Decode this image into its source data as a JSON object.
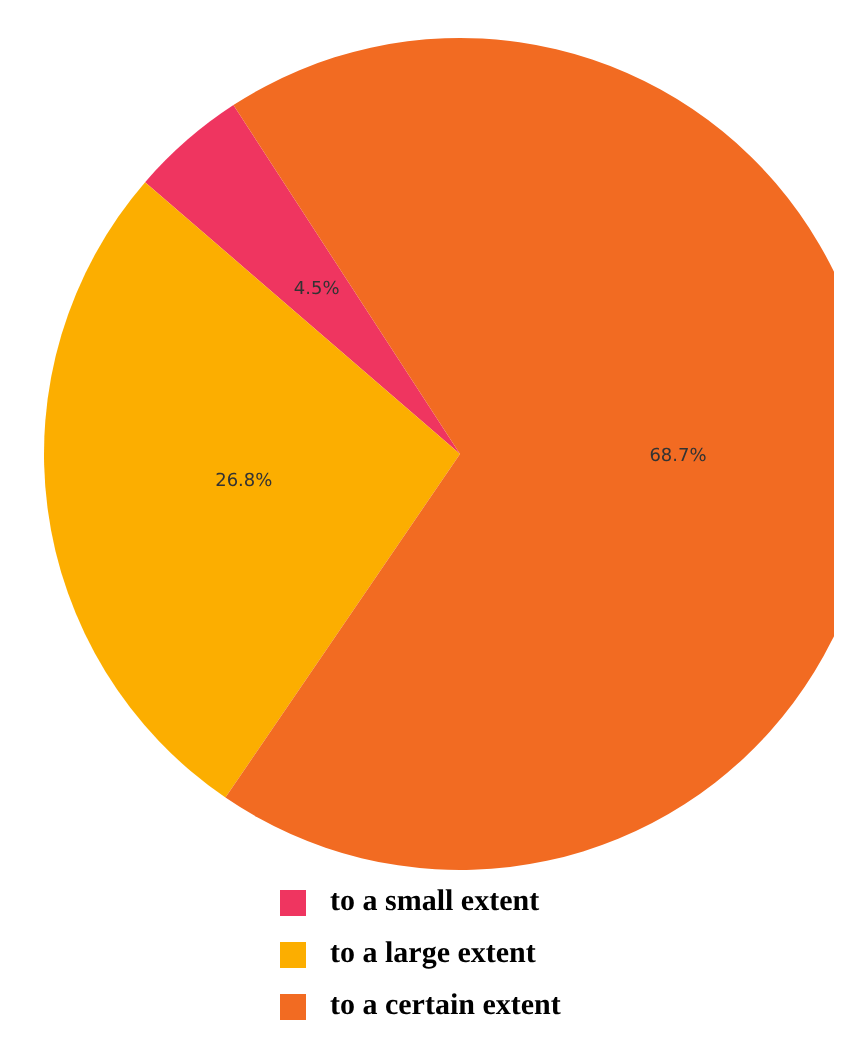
{
  "chart_data": {
    "type": "pie",
    "categories": [
      "to a small extent",
      "to a large extent",
      "to a certain extent"
    ],
    "values": [
      4.5,
      26.8,
      68.7
    ],
    "value_labels": [
      "4.5%",
      "26.8%",
      "68.7%"
    ],
    "colors": [
      "#ef3560",
      "#fcae00",
      "#f26b22"
    ],
    "legend": "bottom"
  }
}
